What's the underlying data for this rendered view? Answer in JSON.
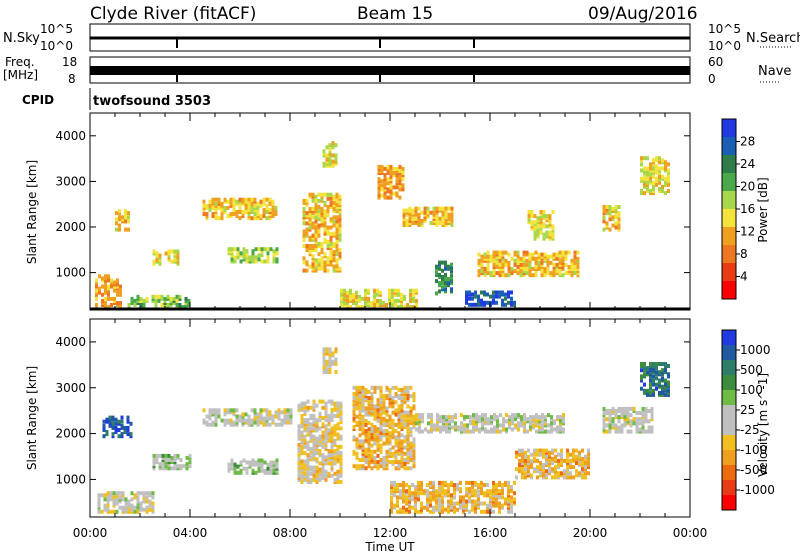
{
  "header": {
    "station": "Clyde River (fitACF)",
    "beam": "Beam 15",
    "date": "09/Aug/2016"
  },
  "top_panels": {
    "nsky": {
      "label": "N.Sky",
      "right_label": "N.Search",
      "left_ticks": [
        "10^5",
        "10^0"
      ],
      "right_ticks": [
        "10^5",
        "10^0"
      ]
    },
    "freq": {
      "label_line1": "Freq.",
      "label_line2": "[MHz]",
      "right_label": "Nave",
      "left_ticks": [
        "18",
        "8"
      ],
      "right_ticks": [
        "60",
        "0"
      ]
    },
    "cpid": {
      "label": "CPID",
      "value": "twofsound 3503"
    }
  },
  "time_axis": {
    "label": "Time UT",
    "ticks": [
      "00:00",
      "04:00",
      "08:00",
      "12:00",
      "16:00",
      "20:00",
      "00:00"
    ]
  },
  "range_axis": {
    "label": "Slant Range [km]",
    "ticks": [
      "1000",
      "2000",
      "3000",
      "4000"
    ]
  },
  "power_colorbar": {
    "label": "Power [dB]",
    "ticks": [
      "4",
      "8",
      "12",
      "16",
      "20",
      "24",
      "28"
    ],
    "colors": [
      "#1f3ae0",
      "#1a5fb4",
      "#2f7d4a",
      "#4aa84a",
      "#a8d84a",
      "#f3e33a",
      "#f0a020",
      "#ee7722",
      "#e83a14",
      "#ff0000"
    ]
  },
  "velocity_colorbar": {
    "label": "Velocity [m s^-1]",
    "ticks": [
      "1000",
      "500",
      "100",
      "25",
      "-25",
      "-100",
      "-500",
      "-1000"
    ],
    "colors": [
      "#1f3ae0",
      "#1f5aa0",
      "#2e7d6a",
      "#3c8c3c",
      "#6ebb46",
      "#c0c0c0",
      "#c0c0c0",
      "#f0c020",
      "#f0a020",
      "#ec6a10",
      "#e83a14",
      "#ff0000"
    ]
  },
  "chart_data": [
    {
      "type": "heatmap",
      "title": "Power",
      "xlabel": "Time UT",
      "ylabel": "Slant Range [km]",
      "xlim": [
        "00:00",
        "24:00"
      ],
      "ylim": [
        180,
        4500
      ],
      "colorbar_range": [
        0,
        30
      ],
      "patches": [
        {
          "t": [
            1.0,
            1.6
          ],
          "r": [
            1900,
            2350
          ],
          "v": 12
        },
        {
          "t": [
            0.2,
            1.2
          ],
          "r": [
            200,
            900
          ],
          "v": 10
        },
        {
          "t": [
            1.5,
            4.0
          ],
          "r": [
            200,
            450
          ],
          "v": 18
        },
        {
          "t": [
            2.5,
            3.5
          ],
          "r": [
            1150,
            1450
          ],
          "v": 14
        },
        {
          "t": [
            4.5,
            7.5
          ],
          "r": [
            2150,
            2600
          ],
          "v": 12
        },
        {
          "t": [
            5.5,
            7.5
          ],
          "r": [
            1200,
            1500
          ],
          "v": 16
        },
        {
          "t": [
            8.5,
            10.0
          ],
          "r": [
            1000,
            2700
          ],
          "v": 12
        },
        {
          "t": [
            9.3,
            9.8
          ],
          "r": [
            3300,
            3800
          ],
          "v": 14
        },
        {
          "t": [
            11.5,
            12.5
          ],
          "r": [
            2600,
            3300
          ],
          "v": 10
        },
        {
          "t": [
            12.5,
            14.5
          ],
          "r": [
            2000,
            2400
          ],
          "v": 12
        },
        {
          "t": [
            13.8,
            14.4
          ],
          "r": [
            500,
            1200
          ],
          "v": 22
        },
        {
          "t": [
            15.0,
            17.0
          ],
          "r": [
            250,
            550
          ],
          "v": 26
        },
        {
          "t": [
            15.5,
            19.5
          ],
          "r": [
            900,
            1400
          ],
          "v": 12
        },
        {
          "t": [
            17.5,
            18.5
          ],
          "r": [
            1700,
            2300
          ],
          "v": 14
        },
        {
          "t": [
            20.5,
            21.2
          ],
          "r": [
            1900,
            2400
          ],
          "v": 12
        },
        {
          "t": [
            22.0,
            23.2
          ],
          "r": [
            2700,
            3500
          ],
          "v": 14
        },
        {
          "t": [
            10.0,
            13.0
          ],
          "r": [
            200,
            600
          ],
          "v": 14
        }
      ]
    },
    {
      "type": "heatmap",
      "title": "Velocity",
      "xlabel": "Time UT",
      "ylabel": "Slant Range [km]",
      "xlim": [
        "00:00",
        "24:00"
      ],
      "ylim": [
        180,
        4500
      ],
      "colorbar_range": [
        -1000,
        1000
      ],
      "patches": [
        {
          "t": [
            0.5,
            1.6
          ],
          "r": [
            1900,
            2350
          ],
          "v": 800
        },
        {
          "t": [
            0.3,
            2.5
          ],
          "r": [
            250,
            700
          ],
          "v": 0
        },
        {
          "t": [
            2.5,
            4.0
          ],
          "r": [
            1200,
            1500
          ],
          "v": 120
        },
        {
          "t": [
            4.5,
            8.0
          ],
          "r": [
            2150,
            2500
          ],
          "v": 0
        },
        {
          "t": [
            5.5,
            7.5
          ],
          "r": [
            1100,
            1400
          ],
          "v": 120
        },
        {
          "t": [
            8.3,
            10.0
          ],
          "r": [
            900,
            2700
          ],
          "v": -150
        },
        {
          "t": [
            9.3,
            9.8
          ],
          "r": [
            3300,
            3800
          ],
          "v": -120
        },
        {
          "t": [
            10.5,
            13.0
          ],
          "r": [
            1200,
            3000
          ],
          "v": -300
        },
        {
          "t": [
            12.0,
            17.0
          ],
          "r": [
            250,
            900
          ],
          "v": -300
        },
        {
          "t": [
            13.0,
            19.0
          ],
          "r": [
            2000,
            2400
          ],
          "v": 0
        },
        {
          "t": [
            17.0,
            20.0
          ],
          "r": [
            1000,
            1600
          ],
          "v": -300
        },
        {
          "t": [
            20.5,
            22.5
          ],
          "r": [
            2000,
            2500
          ],
          "v": 0
        },
        {
          "t": [
            22.0,
            23.2
          ],
          "r": [
            2800,
            3500
          ],
          "v": 600
        }
      ]
    }
  ]
}
